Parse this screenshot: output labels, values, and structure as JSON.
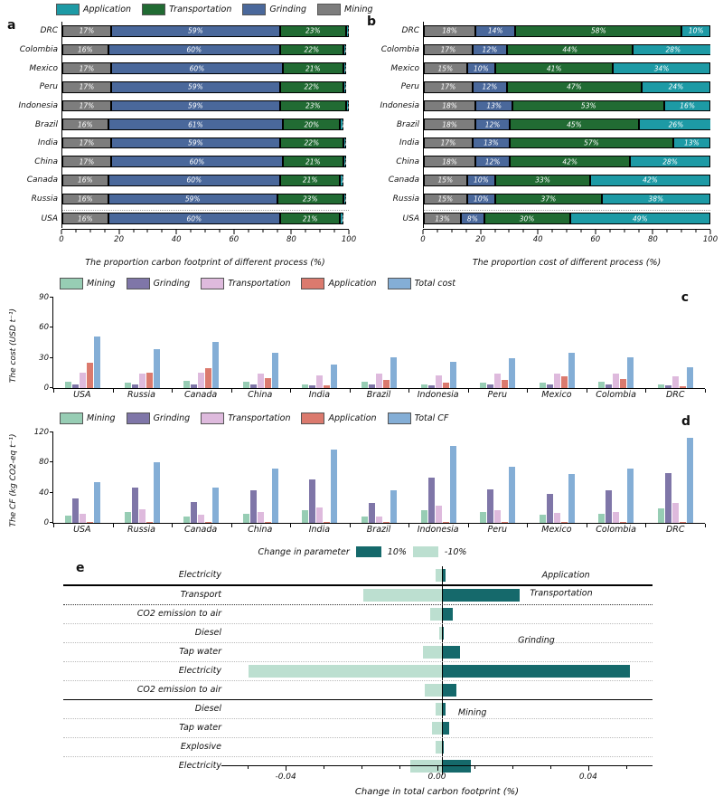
{
  "panels": {
    "letters": {
      "a": "a",
      "b": "b",
      "c": "c",
      "d": "d",
      "e": "e"
    }
  },
  "colors": {
    "application_teal": "#1d9aa5",
    "transportation_green": "#216b33",
    "grinding_blue": "#4a689b",
    "mining_gray": "#7d7d7d",
    "mining_light_green": "#97cdb4",
    "grinding_purple": "#7f76a8",
    "transportation_pink": "#debadd",
    "application_salmon": "#db7a6e",
    "total_blue": "#84aed6",
    "plus_dark_teal": "#15696b",
    "minus_light_mint": "#bcdfd0"
  },
  "chart_data": [
    {
      "id": "a",
      "type": "bar",
      "orientation": "horizontal-stacked",
      "xlabel": "The proportion carbon footprint of different process (%)",
      "xlim": [
        0,
        100
      ],
      "xticks": [
        0,
        20,
        40,
        60,
        80,
        100
      ],
      "legend_position": "top",
      "legend": [
        {
          "label": "Application",
          "color": "#1d9aa5"
        },
        {
          "label": "Transportation",
          "color": "#216b33"
        },
        {
          "label": "Grinding",
          "color": "#4a689b"
        },
        {
          "label": "Mining",
          "color": "#7d7d7d"
        }
      ],
      "categories": [
        "DRC",
        "Colombia",
        "Mexico",
        "Peru",
        "Indonesia",
        "Brazil",
        "India",
        "China",
        "Canada",
        "Russia",
        "USA"
      ],
      "dotted_separator_before": 10,
      "series": [
        {
          "name": "Mining",
          "color": "#7d7d7d",
          "values": [
            17,
            16,
            17,
            17,
            17,
            16,
            17,
            17,
            16,
            16,
            16
          ]
        },
        {
          "name": "Grinding",
          "color": "#4a689b",
          "values": [
            59,
            60,
            60,
            59,
            59,
            61,
            59,
            60,
            60,
            59,
            60
          ]
        },
        {
          "name": "Transportation",
          "color": "#216b33",
          "values": [
            23,
            22,
            21,
            22,
            23,
            20,
            22,
            21,
            21,
            23,
            21
          ]
        },
        {
          "name": "Application",
          "color": "#1d9aa5",
          "values": [
            1,
            1,
            1,
            1,
            1,
            1,
            1,
            1,
            1,
            1,
            1
          ]
        }
      ]
    },
    {
      "id": "b",
      "type": "bar",
      "orientation": "horizontal-stacked",
      "xlabel": "The proportion cost of different process (%)",
      "xlim": [
        0,
        100
      ],
      "xticks": [
        0,
        20,
        40,
        60,
        80,
        100
      ],
      "legend": [],
      "categories": [
        "DRC",
        "Colombia",
        "Mexico",
        "Peru",
        "Indonesia",
        "Brazil",
        "India",
        "China",
        "Canada",
        "Russia",
        "USA"
      ],
      "dotted_separator_before": 10,
      "series": [
        {
          "name": "Mining",
          "color": "#7d7d7d",
          "values": [
            18,
            17,
            15,
            17,
            18,
            18,
            17,
            18,
            15,
            15,
            13
          ]
        },
        {
          "name": "Grinding",
          "color": "#4a689b",
          "values": [
            14,
            12,
            10,
            12,
            13,
            12,
            13,
            12,
            10,
            10,
            8
          ]
        },
        {
          "name": "Transportation",
          "color": "#216b33",
          "values": [
            58,
            44,
            41,
            47,
            53,
            45,
            57,
            42,
            33,
            37,
            30
          ]
        },
        {
          "name": "Application",
          "color": "#1d9aa5",
          "values": [
            10,
            28,
            34,
            24,
            16,
            26,
            13,
            28,
            42,
            38,
            49
          ]
        }
      ]
    },
    {
      "id": "c",
      "type": "bar",
      "orientation": "vertical-grouped",
      "ylabel": "The cost (USD t⁻¹)",
      "ylim": [
        0,
        90
      ],
      "yticks": [
        0,
        30,
        60,
        90
      ],
      "legend_position": "top",
      "legend": [
        {
          "label": "Mining",
          "color": "#97cdb4"
        },
        {
          "label": "Grinding",
          "color": "#7f76a8"
        },
        {
          "label": "Transportation",
          "color": "#debadd"
        },
        {
          "label": "Application",
          "color": "#db7a6e"
        },
        {
          "label": "Total cost",
          "color": "#84aed6"
        }
      ],
      "categories": [
        "USA",
        "Russia",
        "Canada",
        "China",
        "India",
        "Brazil",
        "Indonesia",
        "Peru",
        "Mexico",
        "Colombia",
        "DRC"
      ],
      "series": [
        {
          "name": "Mining",
          "color": "#97cdb4",
          "values": [
            6,
            5,
            7,
            6,
            4,
            6,
            4,
            5,
            5,
            6,
            4
          ]
        },
        {
          "name": "Grinding",
          "color": "#7f76a8",
          "values": [
            4,
            4,
            4,
            4,
            3,
            4,
            3,
            4,
            4,
            4,
            3
          ]
        },
        {
          "name": "Transportation",
          "color": "#debadd",
          "values": [
            15,
            14,
            15,
            14,
            13,
            14,
            13,
            14,
            14,
            14,
            12
          ]
        },
        {
          "name": "Application",
          "color": "#db7a6e",
          "values": [
            25,
            15,
            20,
            10,
            3,
            8,
            5,
            8,
            12,
            9,
            2
          ]
        },
        {
          "name": "Total cost",
          "color": "#84aed6",
          "values": [
            51,
            39,
            46,
            35,
            23,
            31,
            26,
            30,
            35,
            31,
            21
          ]
        }
      ]
    },
    {
      "id": "d",
      "type": "bar",
      "orientation": "vertical-grouped",
      "ylabel": "The CF (kg CO2-eq t⁻¹)",
      "ylim": [
        0,
        120
      ],
      "yticks": [
        0,
        40,
        80,
        120
      ],
      "legend_position": "top",
      "legend": [
        {
          "label": "Mining",
          "color": "#97cdb4"
        },
        {
          "label": "Grinding",
          "color": "#7f76a8"
        },
        {
          "label": "Transportation",
          "color": "#debadd"
        },
        {
          "label": "Application",
          "color": "#db7a6e"
        },
        {
          "label": "Total CF",
          "color": "#84aed6"
        }
      ],
      "categories": [
        "USA",
        "Russia",
        "Canada",
        "China",
        "India",
        "Brazil",
        "Indonesia",
        "Peru",
        "Mexico",
        "Colombia",
        "DRC"
      ],
      "series": [
        {
          "name": "Mining",
          "color": "#97cdb4",
          "values": [
            10,
            15,
            8,
            12,
            17,
            8,
            17,
            14,
            11,
            12,
            19
          ]
        },
        {
          "name": "Grinding",
          "color": "#7f76a8",
          "values": [
            32,
            47,
            28,
            43,
            58,
            26,
            60,
            44,
            39,
            43,
            66
          ]
        },
        {
          "name": "Transportation",
          "color": "#debadd",
          "values": [
            12,
            18,
            11,
            15,
            21,
            9,
            23,
            17,
            13,
            15,
            26
          ]
        },
        {
          "name": "Application",
          "color": "#db7a6e",
          "values": [
            1,
            1,
            1,
            1,
            1,
            1,
            1,
            1,
            1,
            1,
            1
          ]
        },
        {
          "name": "Total CF",
          "color": "#84aed6",
          "values": [
            54,
            80,
            47,
            72,
            97,
            43,
            102,
            75,
            65,
            72,
            113
          ]
        }
      ]
    },
    {
      "id": "e",
      "type": "bar",
      "orientation": "tornado",
      "legend_title": "Change in parameter",
      "series": [
        {
          "name": "10%",
          "color": "#15696b"
        },
        {
          "name": "-10%",
          "color": "#bcdfd0"
        }
      ],
      "xlabel": "Change in total carbon footprint (%)",
      "xlim": [
        -0.057,
        0.057
      ],
      "xticks": [
        -0.04,
        0,
        0.04
      ],
      "xtick_labels": [
        "-0.04",
        "0.00",
        "0.04"
      ],
      "rows": [
        {
          "label": "Electricity",
          "plus": 0.001,
          "minus": -0.0015,
          "divider": "thick"
        },
        {
          "label": "Transport",
          "plus": 0.021,
          "minus": -0.021,
          "divider": "dotted-dark"
        },
        {
          "label": "CO2 emission to air",
          "plus": 0.003,
          "minus": -0.003,
          "divider": "dotted-light"
        },
        {
          "label": "Diesel",
          "plus": 0.0006,
          "minus": -0.0006,
          "divider": "dotted-light"
        },
        {
          "label": "Tap water",
          "plus": 0.005,
          "minus": -0.005,
          "divider": "dotted-light"
        },
        {
          "label": "Electricity",
          "plus": 0.051,
          "minus": -0.052,
          "divider": "dotted-light"
        },
        {
          "label": "CO2 emission to air",
          "plus": 0.004,
          "minus": -0.0045,
          "divider": "solid"
        },
        {
          "label": "Diesel",
          "plus": 0.001,
          "minus": -0.0015,
          "divider": "dotted-light"
        },
        {
          "label": "Tap water",
          "plus": 0.002,
          "minus": -0.0025,
          "divider": "dotted-light"
        },
        {
          "label": "Explosive",
          "plus": 0.0006,
          "minus": -0.0015,
          "divider": "dotted-light"
        },
        {
          "label": "Electricity",
          "plus": 0.008,
          "minus": -0.0085,
          "divider": "none"
        }
      ],
      "section_labels": [
        {
          "text": "Application",
          "row": 0,
          "x_pct": 80
        },
        {
          "text": "Transportation",
          "row": 1,
          "x_pct": 78
        },
        {
          "text": "Grinding",
          "row": 3.6,
          "x_pct": 76
        },
        {
          "text": "Mining",
          "row": 7.6,
          "x_pct": 66
        }
      ]
    }
  ]
}
